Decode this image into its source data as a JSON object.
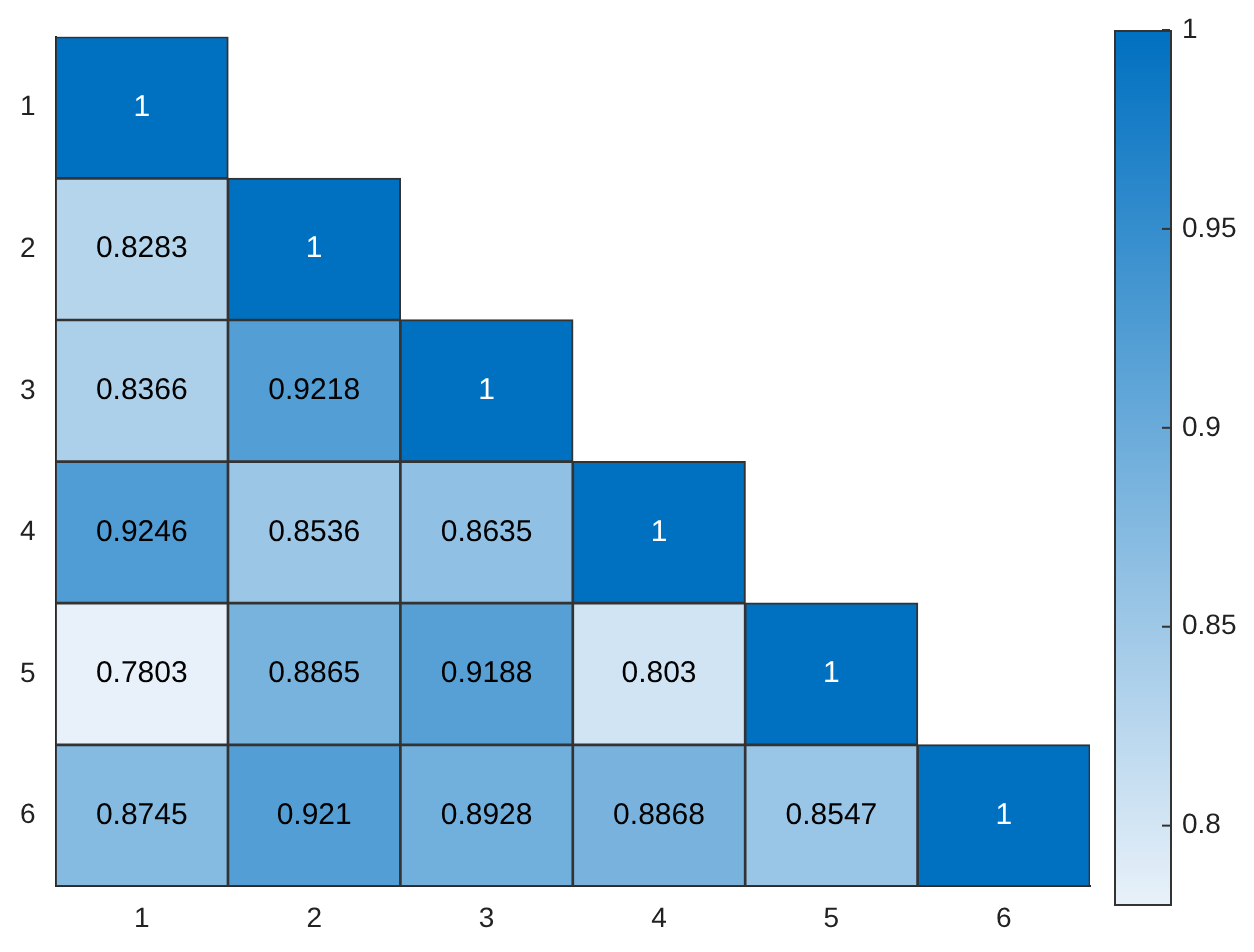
{
  "chart_data": {
    "type": "heatmap",
    "categories": [
      "1",
      "2",
      "3",
      "4",
      "5",
      "6"
    ],
    "y_categories": [
      "1",
      "2",
      "3",
      "4",
      "5",
      "6"
    ],
    "cells": [
      [
        1,
        null,
        null,
        null,
        null,
        null
      ],
      [
        0.8283,
        1,
        null,
        null,
        null,
        null
      ],
      [
        0.8366,
        0.9218,
        1,
        null,
        null,
        null
      ],
      [
        0.9246,
        0.8536,
        0.8635,
        1,
        null,
        null
      ],
      [
        0.7803,
        0.8865,
        0.9188,
        0.803,
        1,
        null
      ],
      [
        0.8745,
        0.921,
        0.8928,
        0.8868,
        0.8547,
        1
      ]
    ],
    "data_labels": true,
    "clim": [
      0.7803,
      1
    ],
    "cticks": [
      0.8,
      0.85,
      0.9,
      0.95,
      1
    ],
    "grid": false,
    "legend": false
  }
}
